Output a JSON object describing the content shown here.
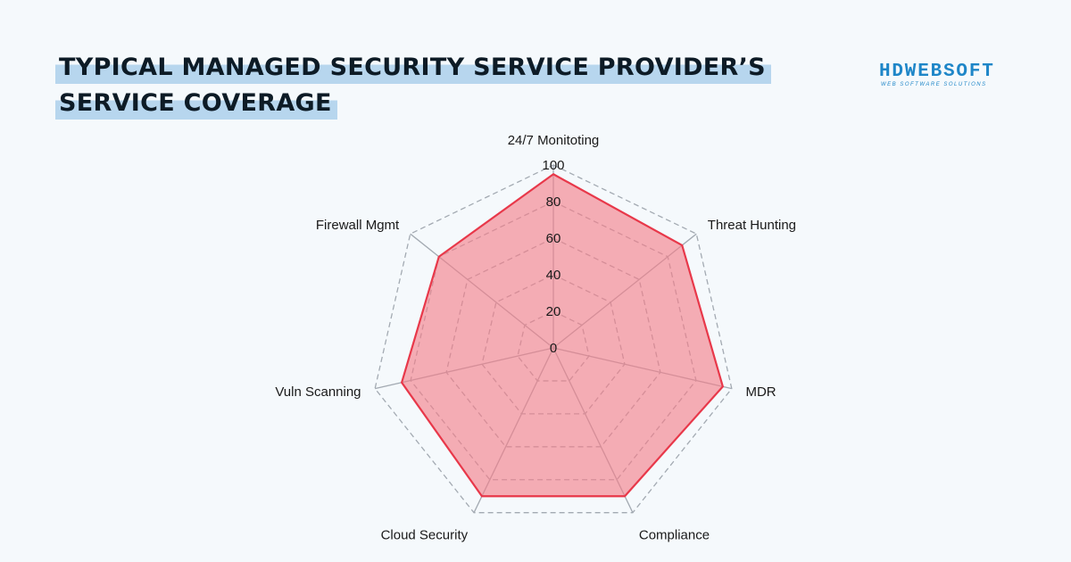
{
  "title": {
    "line1": "TYPICAL MANAGED SECURITY SERVICE PROVIDER’S",
    "line2": "SERVICE COVERAGE"
  },
  "logo": {
    "name": "HDWEBSOFT",
    "tagline": "WEB SOFTWARE SOLUTIONS"
  },
  "chart_data": {
    "type": "radar",
    "categories": [
      "24/7 Monitoting",
      "Threat Hunting",
      "MDR",
      "Compliance",
      "Cloud Security",
      "Vuln Scanning",
      "Firewall Mgmt"
    ],
    "series": [
      {
        "values": [
          95,
          90,
          95,
          90,
          90,
          85,
          80
        ]
      }
    ],
    "range": [
      0,
      100
    ],
    "ticks": [
      0,
      20,
      40,
      60,
      80,
      100
    ],
    "grid": true,
    "legend": "none",
    "colors": {
      "fill": "#f47c87",
      "stroke": "#e8384a",
      "grid": "#a3aab2"
    }
  }
}
